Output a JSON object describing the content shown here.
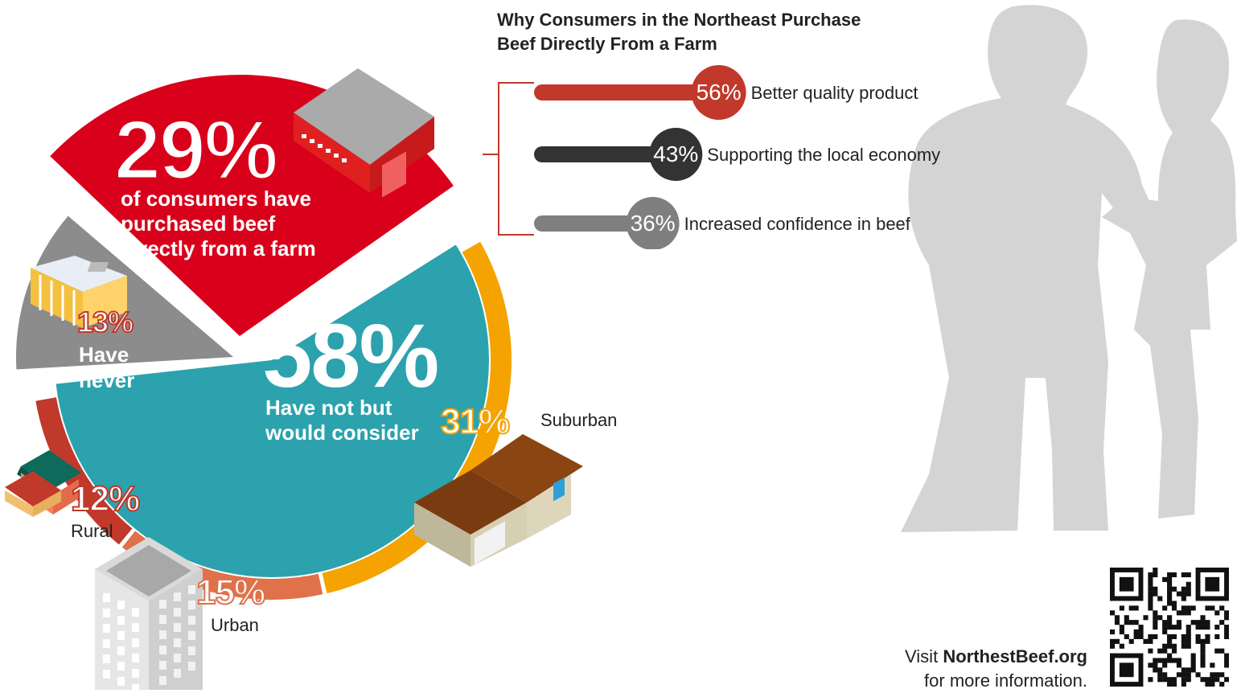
{
  "chart_data": [
    {
      "type": "pie",
      "slices": [
        {
          "label": "of consumers have purchased beef directly from a farm",
          "value": 29,
          "value_label": "29%",
          "color": "#d9001b"
        },
        {
          "label": "Have not but would consider",
          "value": 58,
          "value_label": "58%",
          "color": "#2ba2ad"
        },
        {
          "label": "Have never",
          "value": 13,
          "value_label": "13%",
          "color": "#8c8c8c"
        }
      ],
      "breakdown": [
        {
          "label": "Suburban",
          "value": 31,
          "value_label": "31%",
          "color": "#f5a300"
        },
        {
          "label": "Urban",
          "value": 15,
          "value_label": "15%",
          "color": "#e0714a"
        },
        {
          "label": "Rural",
          "value": 12,
          "value_label": "12%",
          "color": "#c0392b"
        }
      ]
    },
    {
      "type": "bar",
      "title": "Why Consumers in the Northeast Purchase Beef Directly From a Farm",
      "categories": [
        "Better quality product",
        "Supporting the local economy",
        "Increased confidence in beef"
      ],
      "values": [
        56,
        43,
        36
      ],
      "value_labels": [
        "56%",
        "43%",
        "36%"
      ],
      "colors": [
        "#c0392b",
        "#333333",
        "#7f7f7f"
      ]
    }
  ],
  "labels": {
    "purchased_lines": [
      "of consumers have",
      "purchased beef",
      "directly from a farm"
    ],
    "consider_lines": [
      "Have not but",
      "would consider"
    ],
    "never_lines": [
      "Have",
      "never"
    ]
  },
  "footer": {
    "visit": "Visit",
    "site": "NorthestBeef.org",
    "more": "for more information."
  },
  "colors": {
    "red": "#d9001b",
    "teal": "#2ba2ad",
    "gray": "#8c8c8c",
    "orange": "#f5a300",
    "salmon": "#e0714a",
    "rust": "#c0392b",
    "silhouette": "#d0d0d0"
  }
}
